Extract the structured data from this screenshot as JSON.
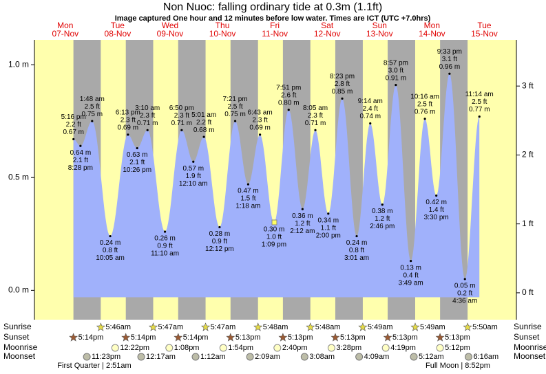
{
  "chart_data": {
    "type": "tide",
    "title": "Non Nuoc: falling  ordinary tide at 0.3m (1.1ft)",
    "subtitle": "Image captured One hour and 12 minutes before low water. Times are ICT (UTC +7.0hrs)",
    "ylim": [
      -0.13,
      1.11
    ],
    "yticks": [
      {
        "value": 0,
        "label": "0.0 m"
      },
      {
        "value": 0.5,
        "label": "0.5 m"
      },
      {
        "value": 1,
        "label": "1.0 m"
      }
    ],
    "y2lim": [
      -0.39,
      3.67
    ],
    "y2ticks": [
      {
        "value": 0,
        "label": "0 ft"
      },
      {
        "value": 1,
        "label": "1 ft"
      },
      {
        "value": 2,
        "label": "2 ft"
      },
      {
        "value": 3,
        "label": "3 ft"
      }
    ],
    "rows": [
      "Sunrise",
      "Sunset",
      "Moonrise",
      "Moonset"
    ],
    "days": [
      {
        "name": "Mon",
        "date": "07-Nov",
        "tides": [
          {
            "time": "5:16 pm",
            "m": {
              "value": 0.67,
              "label": "0.67 m"
            },
            "ft": {
              "value": 2.2,
              "label": "2.2 ft"
            }
          },
          {
            "time": "8:28 pm",
            "m": {
              "value": 0.64,
              "label": "0.64 m"
            },
            "ft": {
              "value": 2.1,
              "label": "2.1 ft"
            }
          }
        ],
        "sunset": "5:14pm",
        "moonset": "11:23pm"
      },
      {
        "name": "Tue",
        "date": "08-Nov",
        "tides": [
          {
            "time": "1:48 am",
            "m": {
              "value": 0.75,
              "label": "0.75 m"
            },
            "ft": {
              "value": 2.5,
              "label": "2.5 ft"
            }
          },
          {
            "time": "10:05 am",
            "m": {
              "value": 0.24,
              "label": "0.24 m"
            },
            "ft": {
              "value": 0.8,
              "label": "0.8 ft"
            }
          },
          {
            "time": "6:13 pm",
            "m": {
              "value": 0.69,
              "label": "0.69 m"
            },
            "ft": {
              "value": 2.3,
              "label": "2.3 ft"
            }
          },
          {
            "time": "10:26 pm",
            "m": {
              "value": 0.63,
              "label": "0.63 m"
            },
            "ft": {
              "value": 2.1,
              "label": "2.1 ft"
            }
          }
        ],
        "sunrise": "5:46am",
        "sunset": "5:14pm",
        "moonrise": "12:22pm",
        "moon_phase": "First Quarter | 2:51am"
      },
      {
        "name": "Wed",
        "date": "09-Nov",
        "tides": [
          {
            "time": "3:10 am",
            "m": {
              "value": 0.71,
              "label": "0.71 m"
            },
            "ft": {
              "value": 2.3,
              "label": "2.3 ft"
            }
          },
          {
            "time": "11:10 am",
            "m": {
              "value": 0.26,
              "label": "0.26 m"
            },
            "ft": {
              "value": 0.9,
              "label": "0.9 ft"
            }
          },
          {
            "time": "6:50 pm",
            "m": {
              "value": 0.71,
              "label": "0.71 m"
            },
            "ft": {
              "value": 2.3,
              "label": "2.3 ft"
            }
          }
        ],
        "sunrise": "5:47am",
        "sunset": "5:14pm",
        "moonrise": "1:08pm",
        "moonset": "12:17am"
      },
      {
        "name": "Thu",
        "date": "10-Nov",
        "tides": [
          {
            "time": "12:10 am",
            "m": {
              "value": 0.57,
              "label": "0.57 m"
            },
            "ft": {
              "value": 1.9,
              "label": "1.9 ft"
            }
          },
          {
            "time": "5:01 am",
            "m": {
              "value": 0.68,
              "label": "0.68 m"
            },
            "ft": {
              "value": 2.2,
              "label": "2.2 ft"
            }
          },
          {
            "time": "12:12 pm",
            "m": {
              "value": 0.28,
              "label": "0.28 m"
            },
            "ft": {
              "value": 0.9,
              "label": "0.9 ft"
            }
          },
          {
            "time": "7:21 pm",
            "m": {
              "value": 0.75,
              "label": "0.75 m"
            },
            "ft": {
              "value": 2.5,
              "label": "2.5 ft"
            }
          }
        ],
        "sunrise": "5:47am",
        "sunset": "5:13pm",
        "moonrise": "1:54pm",
        "moonset": "1:12am"
      },
      {
        "name": "Fri",
        "date": "11-Nov",
        "tides": [
          {
            "time": "1:18 am",
            "m": {
              "value": 0.47,
              "label": "0.47 m"
            },
            "ft": {
              "value": 1.5,
              "label": "1.5 ft"
            }
          },
          {
            "time": "6:43 am",
            "m": {
              "value": 0.69,
              "label": "0.69 m"
            },
            "ft": {
              "value": 2.3,
              "label": "2.3 ft"
            }
          },
          {
            "time": "1:09 pm",
            "m": {
              "value": 0.3,
              "label": "0.30 m"
            },
            "ft": {
              "value": 1.0,
              "label": "1.0 ft"
            }
          },
          {
            "time": "7:51 pm",
            "m": {
              "value": 0.8,
              "label": "0.80 m"
            },
            "ft": {
              "value": 2.6,
              "label": "2.6 ft"
            }
          }
        ],
        "sunrise": "5:48am",
        "sunset": "5:13pm",
        "moonrise": "2:40pm",
        "moonset": "2:09am"
      },
      {
        "name": "Sat",
        "date": "12-Nov",
        "tides": [
          {
            "time": "2:12 am",
            "m": {
              "value": 0.36,
              "label": "0.36 m"
            },
            "ft": {
              "value": 1.2,
              "label": "1.2 ft"
            }
          },
          {
            "time": "8:05 am",
            "m": {
              "value": 0.71,
              "label": "0.71 m"
            },
            "ft": {
              "value": 2.3,
              "label": "2.3 ft"
            }
          },
          {
            "time": "2:00 pm",
            "m": {
              "value": 0.34,
              "label": "0.34 m"
            },
            "ft": {
              "value": 1.1,
              "label": "1.1 ft"
            }
          },
          {
            "time": "8:23 pm",
            "m": {
              "value": 0.85,
              "label": "0.85 m"
            },
            "ft": {
              "value": 2.8,
              "label": "2.8 ft"
            }
          }
        ],
        "sunrise": "5:48am",
        "sunset": "5:13pm",
        "moonrise": "3:28pm",
        "moonset": "3:08am"
      },
      {
        "name": "Sun",
        "date": "13-Nov",
        "tides": [
          {
            "time": "3:01 am",
            "m": {
              "value": 0.24,
              "label": "0.24 m"
            },
            "ft": {
              "value": 0.8,
              "label": "0.8 ft"
            }
          },
          {
            "time": "9:14 am",
            "m": {
              "value": 0.74,
              "label": "0.74 m"
            },
            "ft": {
              "value": 2.4,
              "label": "2.4 ft"
            }
          },
          {
            "time": "2:46 pm",
            "m": {
              "value": 0.38,
              "label": "0.38 m"
            },
            "ft": {
              "value": 1.2,
              "label": "1.2 ft"
            }
          },
          {
            "time": "8:57 pm",
            "m": {
              "value": 0.91,
              "label": "0.91 m"
            },
            "ft": {
              "value": 3.0,
              "label": "3.0 ft"
            }
          }
        ],
        "sunrise": "5:49am",
        "sunset": "5:13pm",
        "moonrise": "4:19pm",
        "moonset": "4:09am"
      },
      {
        "name": "Mon",
        "date": "14-Nov",
        "tides": [
          {
            "time": "3:49 am",
            "m": {
              "value": 0.13,
              "label": "0.13 m"
            },
            "ft": {
              "value": 0.4,
              "label": "0.4 ft"
            }
          },
          {
            "time": "10:16 am",
            "m": {
              "value": 0.76,
              "label": "0.76 m"
            },
            "ft": {
              "value": 2.5,
              "label": "2.5 ft"
            }
          },
          {
            "time": "3:30 pm",
            "m": {
              "value": 0.42,
              "label": "0.42 m"
            },
            "ft": {
              "value": 1.4,
              "label": "1.4 ft"
            }
          },
          {
            "time": "9:33 pm",
            "m": {
              "value": 0.96,
              "label": "0.96 m"
            },
            "ft": {
              "value": 3.1,
              "label": "3.1 ft"
            }
          }
        ],
        "sunrise": "5:49am",
        "sunset": "5:13pm",
        "moonrise": "5:12pm",
        "moonset": "5:12am",
        "moon_phase": "Full Moon | 8:52pm"
      },
      {
        "name": "Tue",
        "date": "15-Nov",
        "tides": [
          {
            "time": "4:36 am",
            "m": {
              "value": 0.05,
              "label": "0.05 m"
            },
            "ft": {
              "value": 0.2,
              "label": "0.2 ft"
            }
          },
          {
            "time": "11:14 am",
            "m": {
              "value": 0.77,
              "label": "0.77 m"
            },
            "ft": {
              "value": 2.5,
              "label": "2.5 ft"
            }
          }
        ],
        "sunrise": "5:50am",
        "moonset": "6:16am"
      }
    ]
  }
}
